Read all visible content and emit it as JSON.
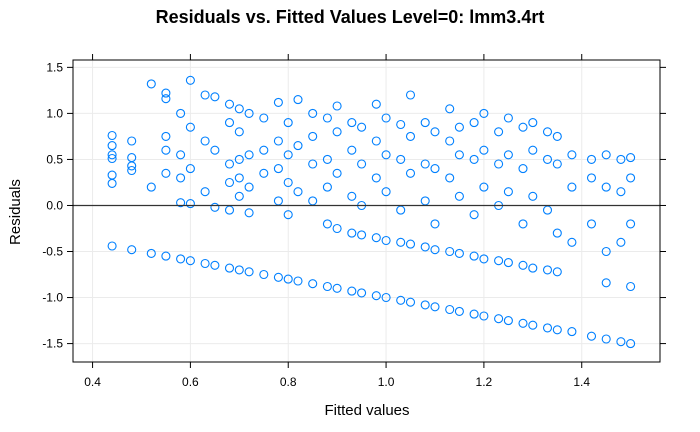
{
  "chart_data": {
    "type": "scatter",
    "title": "Residuals vs. Fitted Values Level=0: lmm3.4rt",
    "xlabel": "Fitted values",
    "ylabel": "Residuals",
    "xlim": [
      0.36,
      1.56
    ],
    "ylim": [
      -1.7,
      1.58
    ],
    "x_ticks": [
      "0.4",
      "0.6",
      "0.8",
      "1.0",
      "1.2",
      "1.4"
    ],
    "y_ticks": [
      "-1.5",
      "-1.0",
      "-0.5",
      "0.0",
      "0.5",
      "1.0",
      "1.5"
    ],
    "reference_line_y": 0,
    "point_color": "#0080ff",
    "grid": true,
    "series": [
      {
        "values": [
          [
            0.44,
            0.76
          ],
          [
            0.44,
            0.65
          ],
          [
            0.44,
            0.55
          ],
          [
            0.44,
            0.51
          ],
          [
            0.44,
            0.33
          ],
          [
            0.44,
            0.24
          ],
          [
            0.44,
            -0.44
          ],
          [
            0.48,
            0.7
          ],
          [
            0.48,
            0.52
          ],
          [
            0.48,
            0.43
          ],
          [
            0.48,
            0.38
          ],
          [
            0.48,
            -0.48
          ],
          [
            0.52,
            1.32
          ],
          [
            0.52,
            0.2
          ],
          [
            0.52,
            -0.52
          ],
          [
            0.55,
            1.22
          ],
          [
            0.55,
            1.16
          ],
          [
            0.55,
            0.75
          ],
          [
            0.55,
            0.6
          ],
          [
            0.55,
            0.35
          ],
          [
            0.55,
            -0.55
          ],
          [
            0.58,
            1.0
          ],
          [
            0.58,
            0.55
          ],
          [
            0.58,
            0.3
          ],
          [
            0.58,
            0.03
          ],
          [
            0.58,
            -0.58
          ],
          [
            0.6,
            1.36
          ],
          [
            0.6,
            0.85
          ],
          [
            0.6,
            0.4
          ],
          [
            0.6,
            0.02
          ],
          [
            0.6,
            -0.6
          ],
          [
            0.63,
            1.2
          ],
          [
            0.63,
            0.7
          ],
          [
            0.63,
            0.15
          ],
          [
            0.63,
            -0.63
          ],
          [
            0.65,
            1.18
          ],
          [
            0.65,
            0.6
          ],
          [
            0.65,
            -0.02
          ],
          [
            0.65,
            -0.65
          ],
          [
            0.68,
            1.1
          ],
          [
            0.68,
            0.9
          ],
          [
            0.68,
            0.45
          ],
          [
            0.68,
            0.25
          ],
          [
            0.68,
            -0.05
          ],
          [
            0.68,
            -0.68
          ],
          [
            0.7,
            1.05
          ],
          [
            0.7,
            0.8
          ],
          [
            0.7,
            0.5
          ],
          [
            0.7,
            0.3
          ],
          [
            0.7,
            0.1
          ],
          [
            0.7,
            -0.7
          ],
          [
            0.72,
            1.0
          ],
          [
            0.72,
            0.55
          ],
          [
            0.72,
            0.2
          ],
          [
            0.72,
            -0.08
          ],
          [
            0.72,
            -0.72
          ],
          [
            0.75,
            0.95
          ],
          [
            0.75,
            0.6
          ],
          [
            0.75,
            0.35
          ],
          [
            0.75,
            -0.75
          ],
          [
            0.78,
            1.12
          ],
          [
            0.78,
            0.7
          ],
          [
            0.78,
            0.4
          ],
          [
            0.78,
            0.05
          ],
          [
            0.78,
            -0.78
          ],
          [
            0.8,
            0.9
          ],
          [
            0.8,
            0.55
          ],
          [
            0.8,
            0.25
          ],
          [
            0.8,
            -0.1
          ],
          [
            0.8,
            -0.8
          ],
          [
            0.82,
            1.15
          ],
          [
            0.82,
            0.65
          ],
          [
            0.82,
            0.15
          ],
          [
            0.82,
            -0.82
          ],
          [
            0.85,
            1.0
          ],
          [
            0.85,
            0.75
          ],
          [
            0.85,
            0.45
          ],
          [
            0.85,
            0.05
          ],
          [
            0.85,
            -0.85
          ],
          [
            0.88,
            0.95
          ],
          [
            0.88,
            0.5
          ],
          [
            0.88,
            0.2
          ],
          [
            0.88,
            -0.2
          ],
          [
            0.88,
            -0.88
          ],
          [
            0.9,
            1.08
          ],
          [
            0.9,
            0.8
          ],
          [
            0.9,
            0.35
          ],
          [
            0.9,
            -0.25
          ],
          [
            0.9,
            -0.9
          ],
          [
            0.93,
            0.9
          ],
          [
            0.93,
            0.6
          ],
          [
            0.93,
            0.1
          ],
          [
            0.93,
            -0.3
          ],
          [
            0.93,
            -0.93
          ],
          [
            0.95,
            0.85
          ],
          [
            0.95,
            0.45
          ],
          [
            0.95,
            0.0
          ],
          [
            0.95,
            -0.32
          ],
          [
            0.95,
            -0.95
          ],
          [
            0.98,
            1.1
          ],
          [
            0.98,
            0.7
          ],
          [
            0.98,
            0.3
          ],
          [
            0.98,
            -0.35
          ],
          [
            0.98,
            -0.98
          ],
          [
            1.0,
            0.95
          ],
          [
            1.0,
            0.55
          ],
          [
            1.0,
            0.15
          ],
          [
            1.0,
            -0.38
          ],
          [
            1.0,
            -1.0
          ],
          [
            1.03,
            0.88
          ],
          [
            1.03,
            0.5
          ],
          [
            1.03,
            -0.05
          ],
          [
            1.03,
            -0.4
          ],
          [
            1.03,
            -1.03
          ],
          [
            1.05,
            1.2
          ],
          [
            1.05,
            0.75
          ],
          [
            1.05,
            0.35
          ],
          [
            1.05,
            -0.42
          ],
          [
            1.05,
            -1.05
          ],
          [
            1.08,
            0.9
          ],
          [
            1.08,
            0.45
          ],
          [
            1.08,
            0.05
          ],
          [
            1.08,
            -0.45
          ],
          [
            1.08,
            -1.08
          ],
          [
            1.1,
            0.8
          ],
          [
            1.1,
            0.4
          ],
          [
            1.1,
            -0.2
          ],
          [
            1.1,
            -0.48
          ],
          [
            1.1,
            -1.1
          ],
          [
            1.13,
            1.05
          ],
          [
            1.13,
            0.7
          ],
          [
            1.13,
            0.3
          ],
          [
            1.13,
            -0.5
          ],
          [
            1.13,
            -1.13
          ],
          [
            1.15,
            0.85
          ],
          [
            1.15,
            0.55
          ],
          [
            1.15,
            0.1
          ],
          [
            1.15,
            -0.52
          ],
          [
            1.15,
            -1.15
          ],
          [
            1.18,
            0.9
          ],
          [
            1.18,
            0.5
          ],
          [
            1.18,
            -0.1
          ],
          [
            1.18,
            -0.55
          ],
          [
            1.18,
            -1.18
          ],
          [
            1.2,
            1.0
          ],
          [
            1.2,
            0.6
          ],
          [
            1.2,
            0.2
          ],
          [
            1.2,
            -0.58
          ],
          [
            1.2,
            -1.2
          ],
          [
            1.23,
            0.8
          ],
          [
            1.23,
            0.45
          ],
          [
            1.23,
            0.0
          ],
          [
            1.23,
            -0.6
          ],
          [
            1.23,
            -1.23
          ],
          [
            1.25,
            0.95
          ],
          [
            1.25,
            0.55
          ],
          [
            1.25,
            0.15
          ],
          [
            1.25,
            -0.62
          ],
          [
            1.25,
            -1.25
          ],
          [
            1.28,
            0.85
          ],
          [
            1.28,
            0.4
          ],
          [
            1.28,
            -0.2
          ],
          [
            1.28,
            -0.65
          ],
          [
            1.28,
            -1.28
          ],
          [
            1.3,
            0.9
          ],
          [
            1.3,
            0.6
          ],
          [
            1.3,
            0.1
          ],
          [
            1.3,
            -0.68
          ],
          [
            1.3,
            -1.3
          ],
          [
            1.33,
            0.8
          ],
          [
            1.33,
            0.5
          ],
          [
            1.33,
            -0.05
          ],
          [
            1.33,
            -0.7
          ],
          [
            1.33,
            -1.33
          ],
          [
            1.35,
            0.75
          ],
          [
            1.35,
            0.45
          ],
          [
            1.35,
            -0.3
          ],
          [
            1.35,
            -0.72
          ],
          [
            1.35,
            -1.35
          ],
          [
            1.38,
            0.55
          ],
          [
            1.38,
            0.2
          ],
          [
            1.38,
            -0.4
          ],
          [
            1.38,
            -1.37
          ],
          [
            1.42,
            0.5
          ],
          [
            1.42,
            0.3
          ],
          [
            1.42,
            -0.2
          ],
          [
            1.42,
            -1.42
          ],
          [
            1.45,
            0.55
          ],
          [
            1.45,
            0.2
          ],
          [
            1.45,
            -0.5
          ],
          [
            1.45,
            -0.84
          ],
          [
            1.45,
            -1.45
          ],
          [
            1.48,
            0.5
          ],
          [
            1.48,
            0.15
          ],
          [
            1.48,
            -0.4
          ],
          [
            1.48,
            -1.48
          ],
          [
            1.5,
            0.52
          ],
          [
            1.5,
            0.3
          ],
          [
            1.5,
            -0.2
          ],
          [
            1.5,
            -0.88
          ],
          [
            1.5,
            -1.5
          ]
        ]
      }
    ]
  }
}
